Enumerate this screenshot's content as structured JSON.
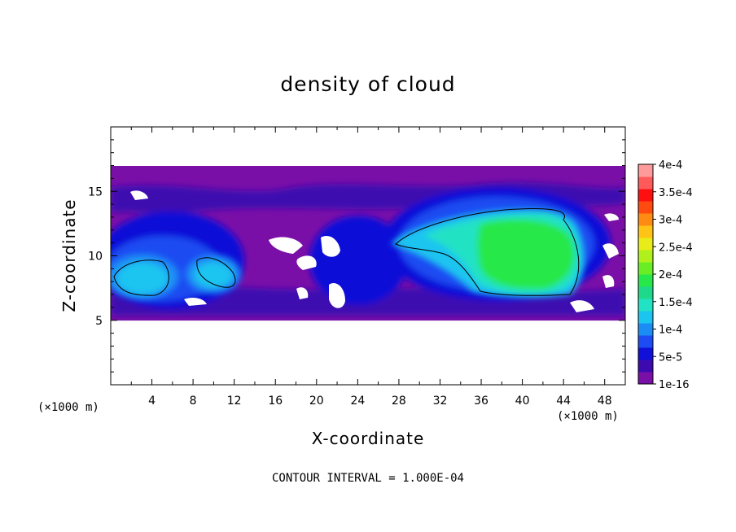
{
  "chart_data": {
    "type": "heatmap",
    "title": "density of cloud",
    "xlabel": "X-coordinate",
    "ylabel": "Z-coordinate",
    "x_unit": "(×1000 m)",
    "x_unit_bottom": "(×1000 m)",
    "xlim": [
      0,
      50
    ],
    "ylim": [
      0,
      20
    ],
    "x_ticks": [
      "4",
      "8",
      "12",
      "16",
      "20",
      "24",
      "28",
      "32",
      "36",
      "40",
      "44",
      "48"
    ],
    "y_ticks": [
      "5",
      "10",
      "15"
    ],
    "note": "CONTOUR INTERVAL = 1.000E-04",
    "colorbar": {
      "labels": [
        "1e-16",
        "5e-5",
        "1e-4",
        "1.5e-4",
        "2e-4",
        "2.5e-4",
        "3e-4",
        "3.5e-4",
        "4e-4"
      ],
      "colors": [
        "#7a0fa8",
        "#3d0ab0",
        "#1010d8",
        "#1d4cf2",
        "#1c8cf5",
        "#1cc4f0",
        "#22e2c4",
        "#1ed98a",
        "#26e84a",
        "#69ee25",
        "#b0f01c",
        "#e8ec18",
        "#ffc415",
        "#ff8c12",
        "#ff4a10",
        "#ff1010",
        "#ff5a5a",
        "#ff9a9a"
      ]
    },
    "cloud_layer_z": [
      5,
      17
    ],
    "features": [
      {
        "name": "large-cloud-core",
        "x_center": 38,
        "z_center": 10.5,
        "level": "2e-4"
      },
      {
        "name": "left-cloud-core",
        "x_center": 4,
        "z_center": 8.5,
        "level": "1.5e-4"
      },
      {
        "name": "mid-left-cloud-core",
        "x_center": 10,
        "z_center": 8.5,
        "level": "1.5e-4"
      }
    ]
  }
}
